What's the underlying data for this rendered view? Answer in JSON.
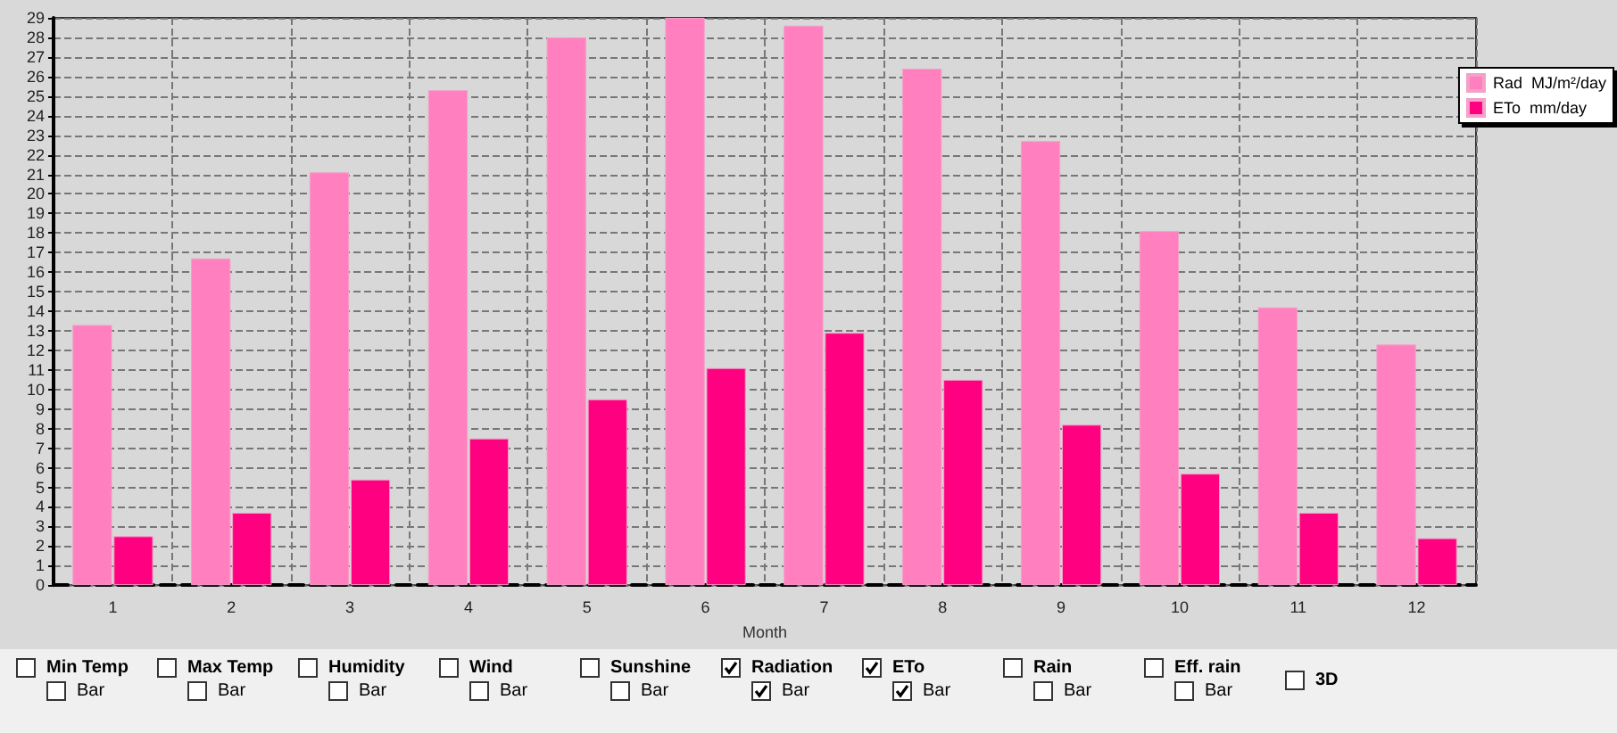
{
  "chart_data": {
    "type": "bar",
    "xlabel": "Month",
    "categories": [
      "1",
      "2",
      "3",
      "4",
      "5",
      "6",
      "7",
      "8",
      "9",
      "10",
      "11",
      "12"
    ],
    "series": [
      {
        "name": "Rad  MJ/m²/day",
        "color": "#ff7fbf",
        "values": [
          13.3,
          16.7,
          21.1,
          25.3,
          28.0,
          29.0,
          28.6,
          26.4,
          22.7,
          18.1,
          14.2,
          12.3
        ]
      },
      {
        "name": "ETo  mm/day",
        "color": "#ff0080",
        "values": [
          2.5,
          3.7,
          5.4,
          7.5,
          9.5,
          11.1,
          12.9,
          10.5,
          8.2,
          5.7,
          3.7,
          2.4
        ]
      }
    ],
    "ylim": [
      0,
      29
    ],
    "yticks": [
      0,
      1,
      2,
      3,
      4,
      5,
      6,
      7,
      8,
      9,
      10,
      11,
      12,
      13,
      14,
      15,
      16,
      17,
      18,
      19,
      20,
      21,
      22,
      23,
      24,
      25,
      26,
      27,
      28,
      29
    ],
    "grid": true,
    "legend": "top right",
    "annotations": [
      "Min Temp",
      "Bar",
      "Max Temp",
      "Bar",
      "Humidity",
      "Bar",
      "Wind",
      "Bar",
      "Sunshine",
      "Bar",
      "Radiation",
      "Bar",
      "ETo",
      "Bar",
      "Rain",
      "Bar",
      "Eff. rain",
      "Bar",
      "3D"
    ]
  }
}
